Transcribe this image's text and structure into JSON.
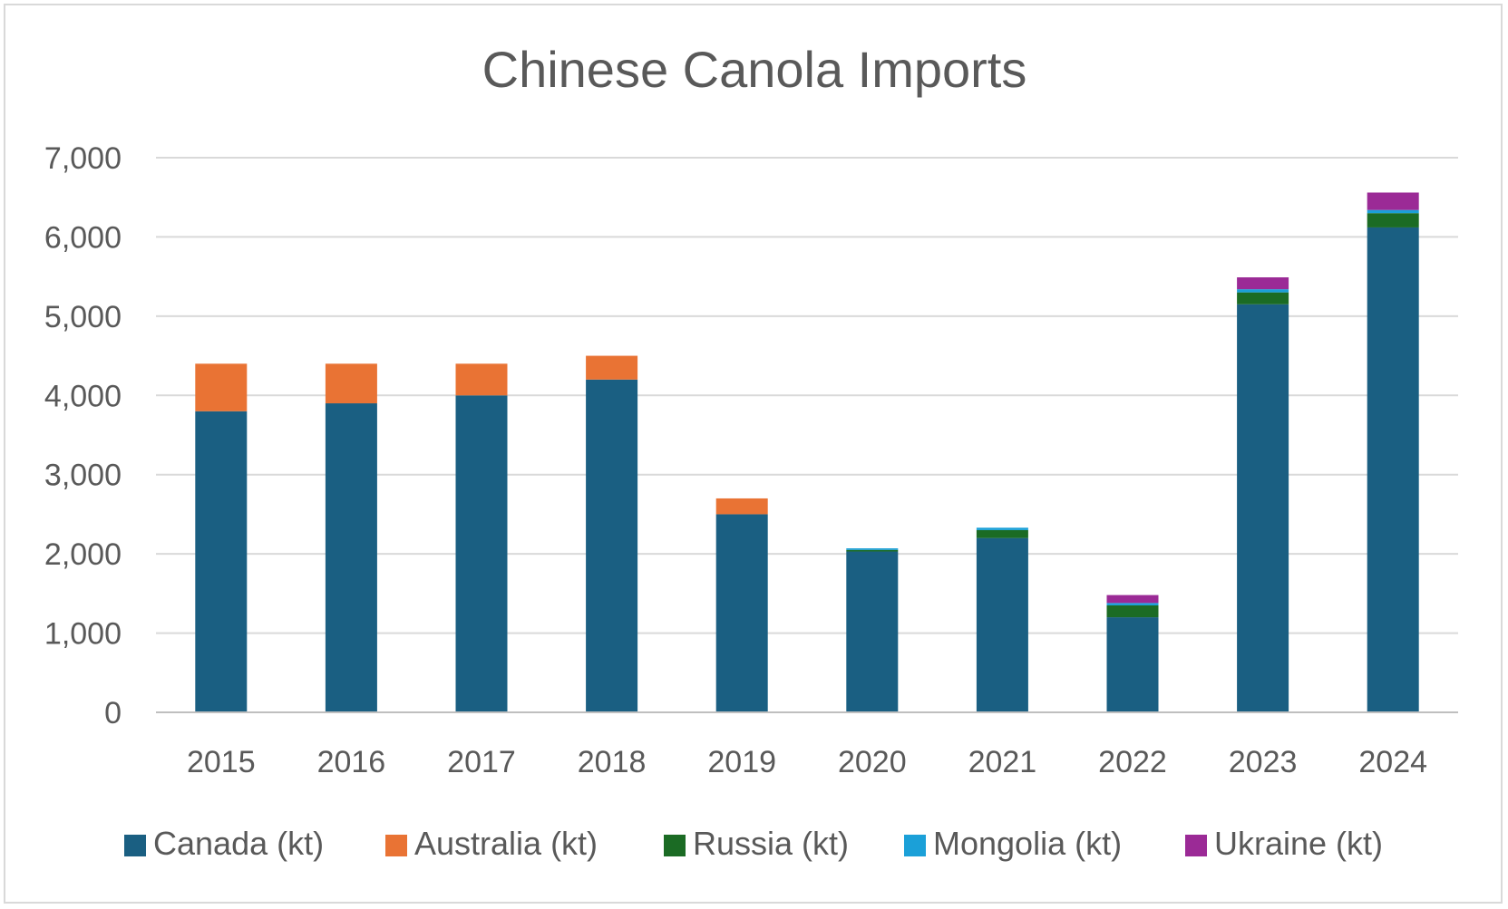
{
  "chart_data": {
    "type": "bar",
    "stacked": true,
    "title": "Chinese Canola Imports",
    "xlabel": "",
    "ylabel": "",
    "categories": [
      "2015",
      "2016",
      "2017",
      "2018",
      "2019",
      "2020",
      "2021",
      "2022",
      "2023",
      "2024"
    ],
    "series": [
      {
        "name": "Canada (kt)",
        "color": "#1a5f82",
        "values": [
          3800,
          3900,
          4000,
          4200,
          2500,
          2030,
          2200,
          1200,
          5150,
          6120
        ]
      },
      {
        "name": "Australia (kt)",
        "color": "#e97334",
        "values": [
          600,
          500,
          400,
          300,
          200,
          0,
          0,
          0,
          0,
          0
        ]
      },
      {
        "name": "Russia (kt)",
        "color": "#1b6b24",
        "values": [
          0,
          0,
          0,
          0,
          0,
          20,
          100,
          150,
          150,
          180
        ]
      },
      {
        "name": "Mongolia (kt)",
        "color": "#1ba0d8",
        "values": [
          0,
          0,
          0,
          0,
          0,
          20,
          30,
          30,
          40,
          40
        ]
      },
      {
        "name": "Ukraine (kt)",
        "color": "#9b2a96",
        "values": [
          0,
          0,
          0,
          0,
          0,
          0,
          0,
          100,
          150,
          220
        ]
      }
    ],
    "ylim": [
      0,
      7000
    ],
    "yticks": [
      0,
      1000,
      2000,
      3000,
      4000,
      5000,
      6000,
      7000
    ],
    "ytick_labels": [
      "0",
      "1,000",
      "2,000",
      "3,000",
      "4,000",
      "5,000",
      "6,000",
      "7,000"
    ],
    "grid": true,
    "legend_position": "bottom"
  }
}
